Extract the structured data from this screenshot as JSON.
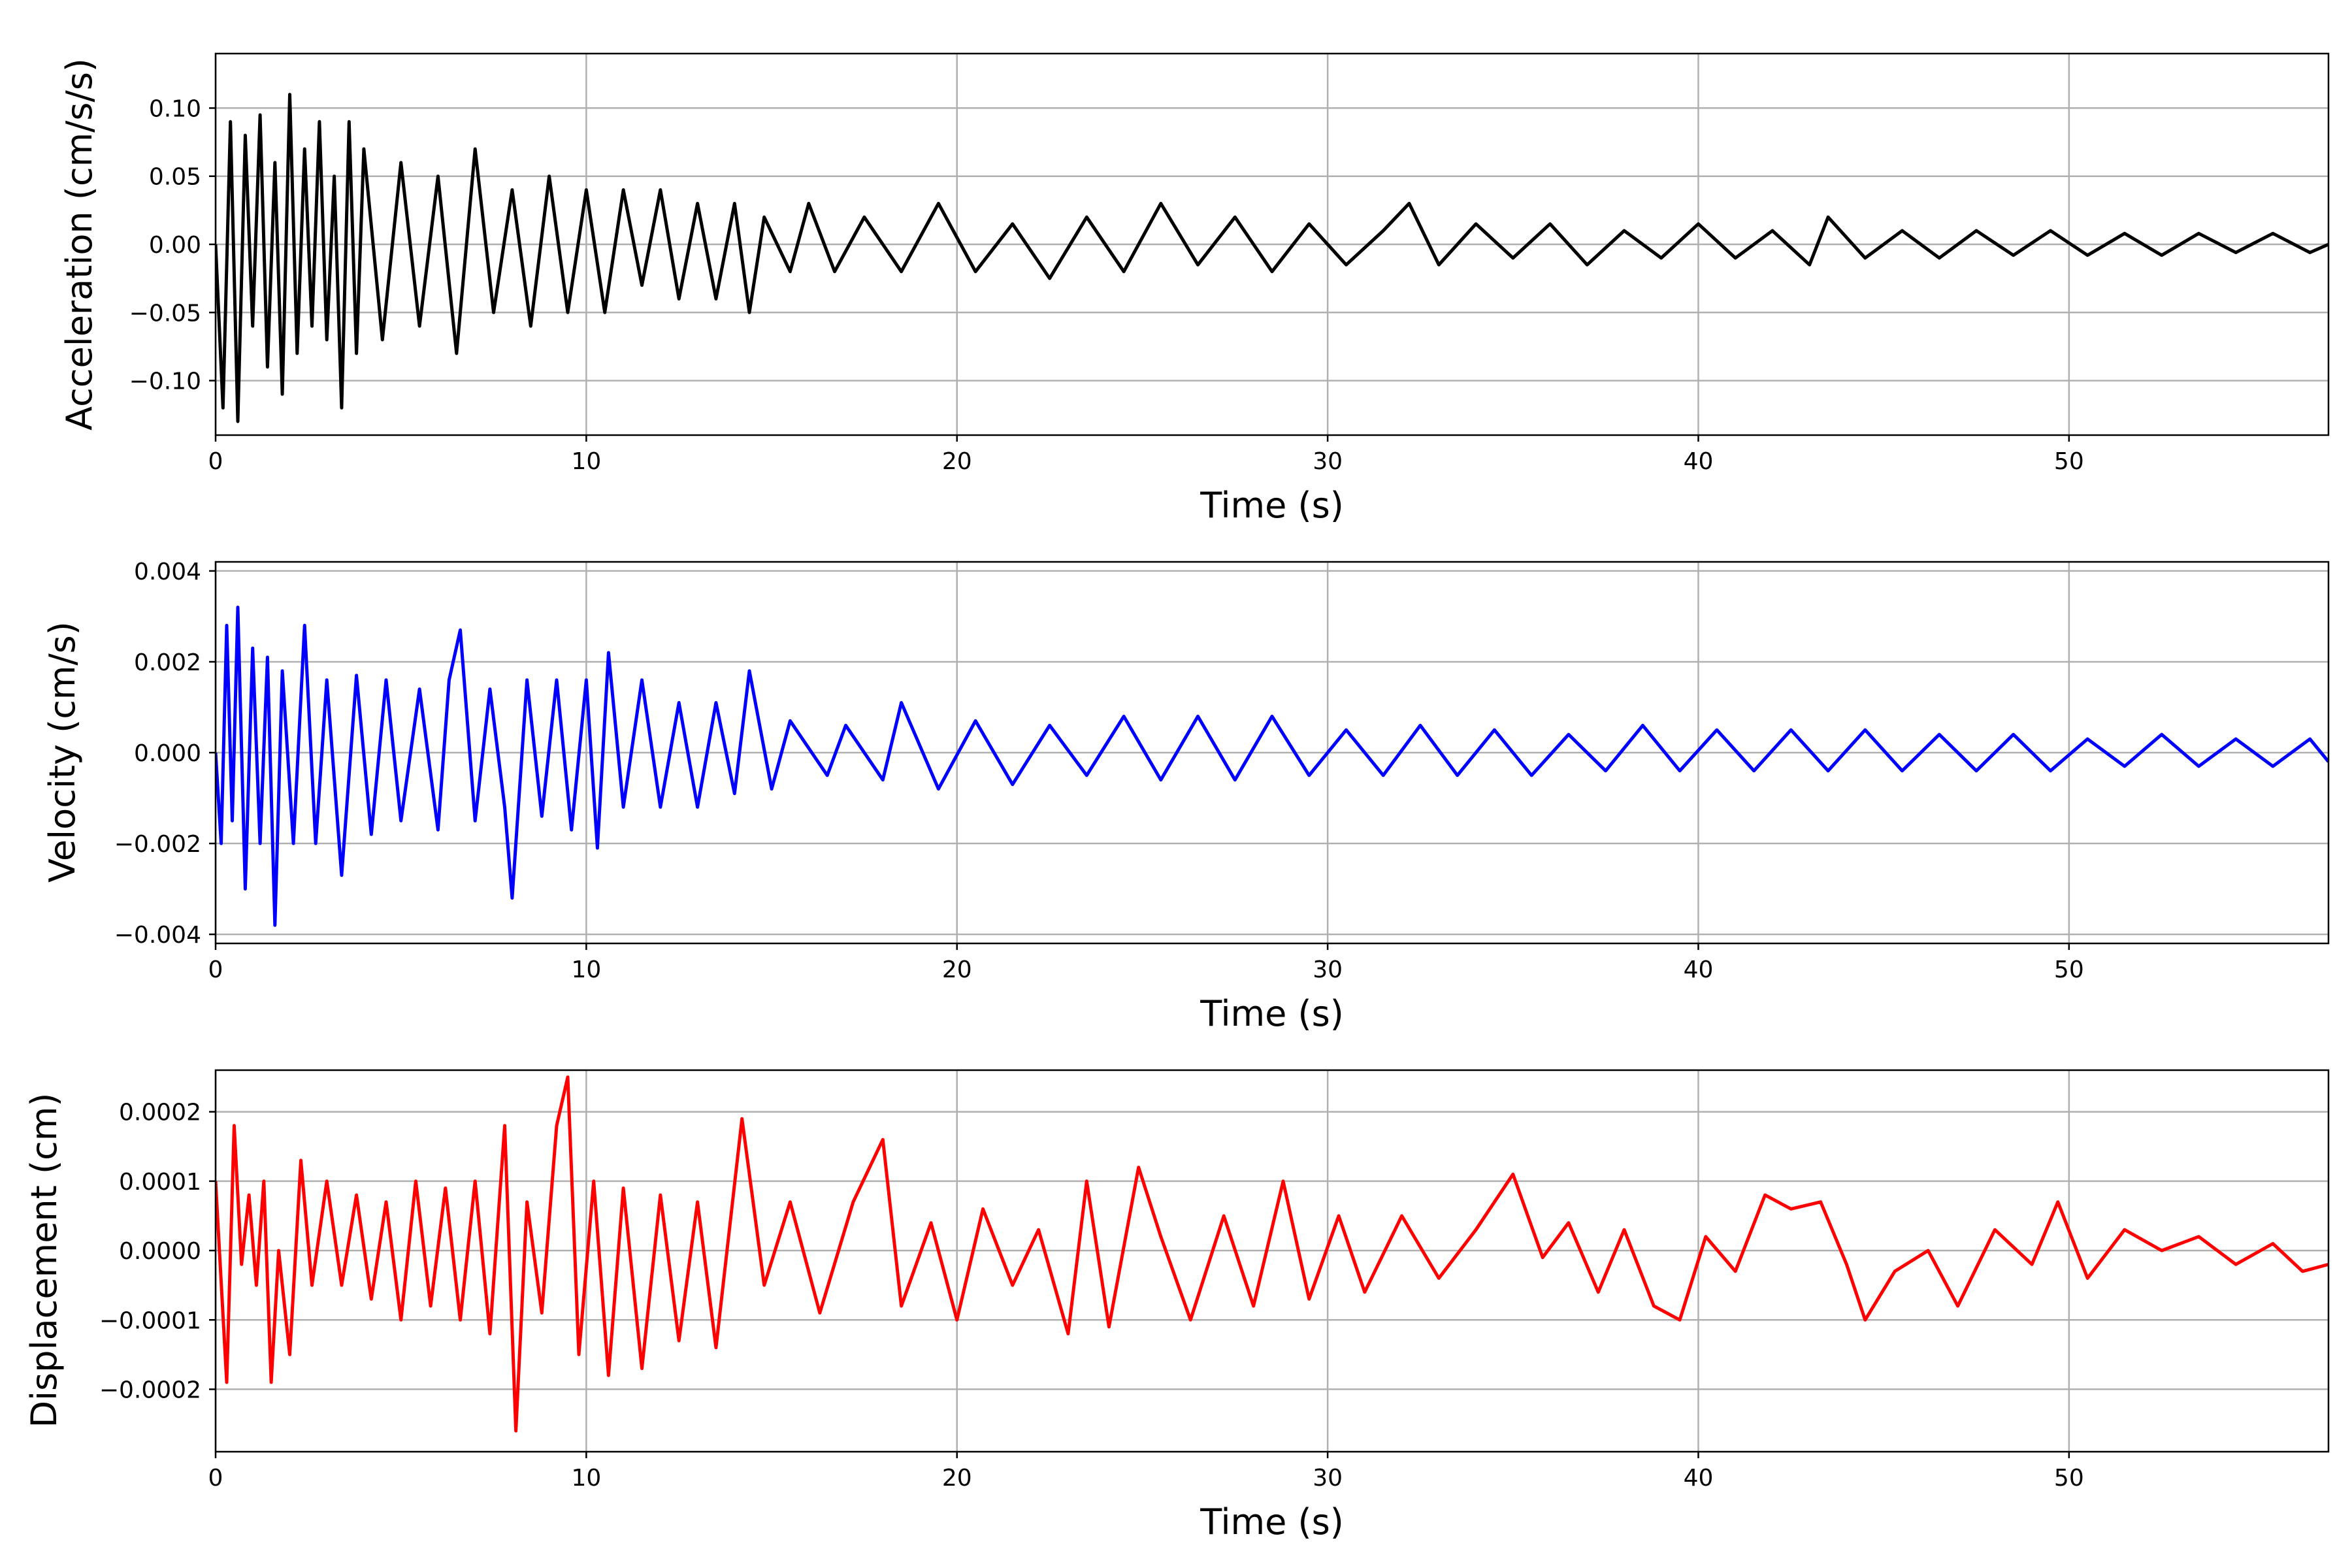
{
  "chart_data": [
    {
      "type": "line",
      "xlabel": "Time (s)",
      "ylabel": "Acceleration (cm/s/s)",
      "xlim": [
        0,
        57
      ],
      "ylim": [
        -0.14,
        0.14
      ],
      "xticks": [
        "0",
        "10",
        "20",
        "30",
        "40",
        "50"
      ],
      "yticks": [
        "0.10",
        "0.05",
        "0.00",
        "−0.05",
        "−0.10"
      ],
      "ytick_values": [
        0.1,
        0.05,
        0.0,
        -0.05,
        -0.1
      ],
      "grid": true,
      "series": [
        {
          "color": "#000000",
          "x": [
            0,
            0.2,
            0.4,
            0.6,
            0.8,
            1.0,
            1.2,
            1.4,
            1.6,
            1.8,
            2.0,
            2.2,
            2.4,
            2.6,
            2.8,
            3.0,
            3.2,
            3.4,
            3.6,
            3.8,
            4.0,
            4.5,
            5.0,
            5.5,
            6.0,
            6.5,
            7.0,
            7.5,
            8.0,
            8.5,
            9.0,
            9.5,
            10.0,
            10.5,
            11.0,
            11.5,
            12.0,
            12.5,
            13.0,
            13.5,
            14.0,
            14.4,
            14.8,
            15.5,
            16.0,
            16.7,
            17.5,
            18.5,
            19.5,
            20.5,
            21.5,
            22.5,
            23.5,
            24.5,
            25.5,
            26.5,
            27.5,
            28.5,
            29.5,
            30.5,
            31.5,
            32.2,
            33.0,
            34.0,
            35.0,
            36.0,
            37.0,
            38.0,
            39.0,
            40.0,
            41.0,
            42.0,
            43.0,
            43.5,
            44.5,
            45.5,
            46.5,
            47.5,
            48.5,
            49.5,
            50.5,
            51.5,
            52.5,
            53.5,
            54.5,
            55.5,
            56.5,
            57.0
          ],
          "y": [
            0.0,
            -0.12,
            0.09,
            -0.13,
            0.08,
            -0.06,
            0.095,
            -0.09,
            0.06,
            -0.11,
            0.11,
            -0.08,
            0.07,
            -0.06,
            0.09,
            -0.07,
            0.05,
            -0.12,
            0.09,
            -0.08,
            0.07,
            -0.07,
            0.06,
            -0.06,
            0.05,
            -0.08,
            0.07,
            -0.05,
            0.04,
            -0.06,
            0.05,
            -0.05,
            0.04,
            -0.05,
            0.04,
            -0.03,
            0.04,
            -0.04,
            0.03,
            -0.04,
            0.03,
            -0.05,
            0.02,
            -0.02,
            0.03,
            -0.02,
            0.02,
            -0.02,
            0.03,
            -0.02,
            0.015,
            -0.025,
            0.02,
            -0.02,
            0.03,
            -0.015,
            0.02,
            -0.02,
            0.015,
            -0.015,
            0.01,
            0.03,
            -0.015,
            0.015,
            -0.01,
            0.015,
            -0.015,
            0.01,
            -0.01,
            0.015,
            -0.01,
            0.01,
            -0.015,
            0.02,
            -0.01,
            0.01,
            -0.01,
            0.01,
            -0.008,
            0.01,
            -0.008,
            0.008,
            -0.008,
            0.008,
            -0.006,
            0.008,
            -0.006,
            0.0
          ]
        }
      ]
    },
    {
      "type": "line",
      "xlabel": "Time (s)",
      "ylabel": "Velocity (cm/s)",
      "xlim": [
        0,
        57
      ],
      "ylim": [
        -0.0042,
        0.0042
      ],
      "xticks": [
        "0",
        "10",
        "20",
        "30",
        "40",
        "50"
      ],
      "yticks": [
        "0.004",
        "0.002",
        "0.000",
        "−0.002",
        "−0.004"
      ],
      "ytick_values": [
        0.004,
        0.002,
        0.0,
        -0.002,
        -0.004
      ],
      "grid": true,
      "series": [
        {
          "color": "#0000ff",
          "x": [
            0,
            0.15,
            0.3,
            0.45,
            0.6,
            0.8,
            1.0,
            1.2,
            1.4,
            1.6,
            1.8,
            2.1,
            2.4,
            2.7,
            3.0,
            3.4,
            3.8,
            4.2,
            4.6,
            5.0,
            5.5,
            6.0,
            6.3,
            6.6,
            7.0,
            7.4,
            7.8,
            8.0,
            8.4,
            8.8,
            9.2,
            9.6,
            10.0,
            10.3,
            10.6,
            11.0,
            11.5,
            12.0,
            12.5,
            13.0,
            13.5,
            14.0,
            14.4,
            15.0,
            15.5,
            16.5,
            17.0,
            18.0,
            18.5,
            19.5,
            20.5,
            21.5,
            22.5,
            23.5,
            24.5,
            25.5,
            26.5,
            27.5,
            28.5,
            29.5,
            30.5,
            31.5,
            32.5,
            33.5,
            34.5,
            35.5,
            36.5,
            37.5,
            38.5,
            39.5,
            40.5,
            41.5,
            42.5,
            43.5,
            44.5,
            45.5,
            46.5,
            47.5,
            48.5,
            49.5,
            50.5,
            51.5,
            52.5,
            53.5,
            54.5,
            55.5,
            56.5,
            57.0
          ],
          "y": [
            0.0,
            -0.002,
            0.0028,
            -0.0015,
            0.0032,
            -0.003,
            0.0023,
            -0.002,
            0.0021,
            -0.0038,
            0.0018,
            -0.002,
            0.0028,
            -0.002,
            0.0016,
            -0.0027,
            0.0017,
            -0.0018,
            0.0016,
            -0.0015,
            0.0014,
            -0.0017,
            0.0016,
            0.0027,
            -0.0015,
            0.0014,
            -0.0012,
            -0.0032,
            0.0016,
            -0.0014,
            0.0016,
            -0.0017,
            0.0016,
            -0.0021,
            0.0022,
            -0.0012,
            0.0016,
            -0.0012,
            0.0011,
            -0.0012,
            0.0011,
            -0.0009,
            0.0018,
            -0.0008,
            0.0007,
            -0.0005,
            0.0006,
            -0.0006,
            0.0011,
            -0.0008,
            0.0007,
            -0.0007,
            0.0006,
            -0.0005,
            0.0008,
            -0.0006,
            0.0008,
            -0.0006,
            0.0008,
            -0.0005,
            0.0005,
            -0.0005,
            0.0006,
            -0.0005,
            0.0005,
            -0.0005,
            0.0004,
            -0.0004,
            0.0006,
            -0.0004,
            0.0005,
            -0.0004,
            0.0005,
            -0.0004,
            0.0005,
            -0.0004,
            0.0004,
            -0.0004,
            0.0004,
            -0.0004,
            0.0003,
            -0.0003,
            0.0004,
            -0.0003,
            0.0003,
            -0.0003,
            0.0003,
            -0.0002
          ]
        }
      ]
    },
    {
      "type": "line",
      "xlabel": "Time (s)",
      "ylabel": "Displacement (cm)",
      "xlim": [
        0,
        57
      ],
      "ylim": [
        -0.00029,
        0.00026
      ],
      "xticks": [
        "0",
        "10",
        "20",
        "30",
        "40",
        "50"
      ],
      "yticks": [
        "0.0002",
        "0.0001",
        "0.0000",
        "−0.0001",
        "−0.0002"
      ],
      "ytick_values": [
        0.0002,
        0.0001,
        0.0,
        -0.0001,
        -0.0002
      ],
      "grid": true,
      "series": [
        {
          "color": "#ff0000",
          "x": [
            0,
            0.3,
            0.5,
            0.7,
            0.9,
            1.1,
            1.3,
            1.5,
            1.7,
            2.0,
            2.3,
            2.6,
            3.0,
            3.4,
            3.8,
            4.2,
            4.6,
            5.0,
            5.4,
            5.8,
            6.2,
            6.6,
            7.0,
            7.4,
            7.8,
            8.1,
            8.4,
            8.8,
            9.2,
            9.5,
            9.8,
            10.2,
            10.6,
            11.0,
            11.5,
            12.0,
            12.5,
            13.0,
            13.5,
            14.2,
            14.8,
            15.5,
            16.3,
            17.2,
            18.0,
            18.5,
            19.3,
            20.0,
            20.7,
            21.5,
            22.2,
            23.0,
            23.5,
            24.1,
            24.9,
            25.5,
            26.3,
            27.2,
            28.0,
            28.8,
            29.5,
            30.3,
            31.0,
            32.0,
            33.0,
            34.0,
            35.0,
            35.8,
            36.5,
            37.3,
            38.0,
            38.8,
            39.5,
            40.2,
            41.0,
            41.8,
            42.5,
            43.3,
            44.0,
            44.5,
            45.3,
            46.2,
            47.0,
            48.0,
            49.0,
            49.7,
            50.5,
            51.5,
            52.5,
            53.5,
            54.5,
            55.5,
            56.3,
            57.0
          ],
          "y": [
            0.0001,
            -0.00019,
            0.00018,
            -2e-05,
            8e-05,
            -5e-05,
            0.0001,
            -0.00019,
            0.0,
            -0.00015,
            0.00013,
            -5e-05,
            0.0001,
            -5e-05,
            8e-05,
            -7e-05,
            7e-05,
            -0.0001,
            0.0001,
            -8e-05,
            9e-05,
            -0.0001,
            0.0001,
            -0.00012,
            0.00018,
            -0.00026,
            7e-05,
            -9e-05,
            0.00018,
            0.00025,
            -0.00015,
            0.0001,
            -0.00018,
            9e-05,
            -0.00017,
            8e-05,
            -0.00013,
            7e-05,
            -0.00014,
            0.00019,
            -5e-05,
            7e-05,
            -9e-05,
            7e-05,
            0.00016,
            -8e-05,
            4e-05,
            -0.0001,
            6e-05,
            -5e-05,
            3e-05,
            -0.00012,
            0.0001,
            -0.00011,
            0.00012,
            2e-05,
            -0.0001,
            5e-05,
            -8e-05,
            0.0001,
            -7e-05,
            5e-05,
            -6e-05,
            5e-05,
            -4e-05,
            3e-05,
            0.00011,
            -1e-05,
            4e-05,
            -6e-05,
            3e-05,
            -8e-05,
            -0.0001,
            2e-05,
            -3e-05,
            8e-05,
            6e-05,
            7e-05,
            -2e-05,
            -0.0001,
            -3e-05,
            0.0,
            -8e-05,
            3e-05,
            -2e-05,
            7e-05,
            -4e-05,
            3e-05,
            0.0,
            2e-05,
            -2e-05,
            1e-05,
            -3e-05,
            -2e-05
          ]
        }
      ]
    }
  ]
}
